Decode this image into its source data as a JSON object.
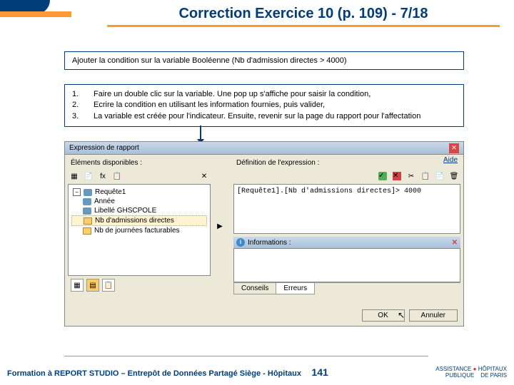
{
  "title": "Correction Exercice 10 (p. 109) - 7/18",
  "box1": "Ajouter la condition sur la variable Booléenne (Nb d'admission directes > 4000)",
  "steps": {
    "nums": [
      "1.",
      "2.",
      "3."
    ],
    "items": [
      "Faire un double clic sur la variable. Une pop up s'affiche pour saisir la condition,",
      "Ecrire la condition en utilisant les information fournies, puis valider,",
      "La variable est créée pour l'indicateur. Ensuite, revenir sur la page du rapport pour l'affectation"
    ]
  },
  "dialog": {
    "title": "Expression de rapport",
    "close": "✕",
    "help": "Aide",
    "leftHeader": "Éléments disponibles :",
    "rightHeader": "Définition de l'expression :",
    "tree": {
      "root": "Requête1",
      "items": [
        "Année",
        "Libellé GHSCPOLE",
        "Nb d'admissions directes",
        "Nb de journées facturables"
      ]
    },
    "expression": "[Requête1].[Nb d'admissions directes]> 4000",
    "infoLabel": "Informations :",
    "tabs": {
      "conseils": "Conseils",
      "erreurs": "Erreurs"
    },
    "ok": "OK",
    "cancel": "Annuler"
  },
  "footer": {
    "text": "Formation à REPORT STUDIO – Entrepôt de Données Partagé Siège - Hôpitaux",
    "page": "141",
    "logo1": "ASSISTANCE",
    "logo2": "PUBLIQUE",
    "logo3": "HÔPITAUX",
    "logo4": "DE PARIS"
  }
}
